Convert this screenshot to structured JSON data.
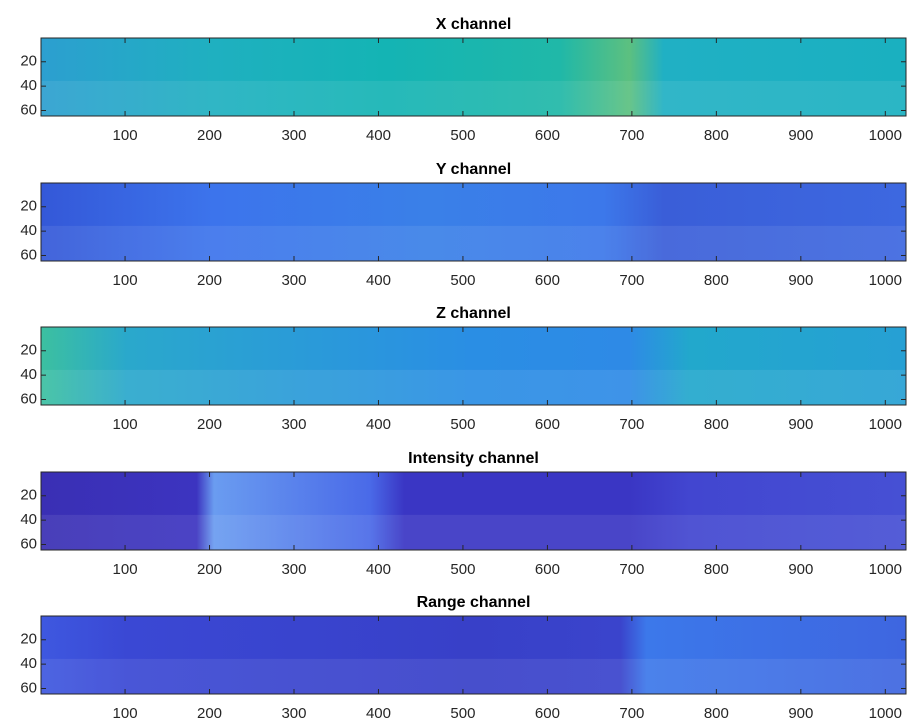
{
  "chart_data": [
    {
      "type": "image",
      "title": "X channel",
      "xlim": [
        0.5,
        1024.5
      ],
      "ylim": [
        0.5,
        64.5
      ],
      "ydir": "reverse",
      "xticks": [
        100,
        200,
        300,
        400,
        500,
        600,
        700,
        800,
        900,
        1000
      ],
      "yticks": [
        20,
        40,
        60
      ]
    },
    {
      "type": "image",
      "title": "Y channel",
      "xlim": [
        0.5,
        1024.5
      ],
      "ylim": [
        0.5,
        64.5
      ],
      "ydir": "reverse",
      "xticks": [
        100,
        200,
        300,
        400,
        500,
        600,
        700,
        800,
        900,
        1000
      ],
      "yticks": [
        20,
        40,
        60
      ]
    },
    {
      "type": "image",
      "title": "Z channel",
      "xlim": [
        0.5,
        1024.5
      ],
      "ylim": [
        0.5,
        64.5
      ],
      "ydir": "reverse",
      "xticks": [
        100,
        200,
        300,
        400,
        500,
        600,
        700,
        800,
        900,
        1000
      ],
      "yticks": [
        20,
        40,
        60
      ]
    },
    {
      "type": "image",
      "title": "Intensity channel",
      "xlim": [
        0.5,
        1024.5
      ],
      "ylim": [
        0.5,
        64.5
      ],
      "ydir": "reverse",
      "xticks": [
        100,
        200,
        300,
        400,
        500,
        600,
        700,
        800,
        900,
        1000
      ],
      "yticks": [
        20,
        40,
        60
      ]
    },
    {
      "type": "image",
      "title": "Range channel",
      "xlim": [
        0.5,
        1024.5
      ],
      "ylim": [
        0.5,
        64.5
      ],
      "ydir": "reverse",
      "xticks": [
        100,
        200,
        300,
        400,
        500,
        600,
        700,
        800,
        900,
        1000
      ],
      "yticks": [
        20,
        40,
        60
      ]
    }
  ]
}
